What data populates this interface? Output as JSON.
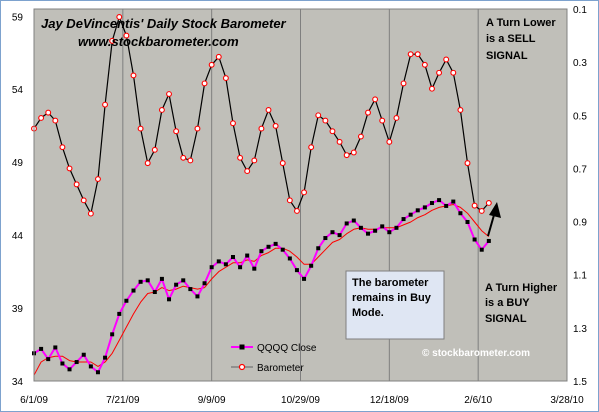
{
  "chart_data": {
    "type": "line",
    "title": "Jay DeVincentis' Daily Stock Barometer",
    "subtitle": "www.stockbarometer.com",
    "x_ticks": [
      "6/1/09",
      "7/21/09",
      "9/9/09",
      "10/29/09",
      "12/18/09",
      "2/6/10",
      "3/28/10"
    ],
    "y_left": {
      "ticks": [
        "59",
        "54",
        "49",
        "44",
        "39",
        "34"
      ],
      "ylim": [
        34,
        59.5
      ]
    },
    "y_right": {
      "ticks": [
        "0.1",
        "0.3",
        "0.5",
        "0.7",
        "0.9",
        "1.1",
        "1.3",
        "1.5"
      ],
      "ylim": [
        0.1,
        1.5
      ],
      "inverted": true
    },
    "grid": "vertical",
    "legend_position": "bottom-center",
    "series": [
      {
        "name": "QQQQ Close",
        "axis": "left",
        "color": "#ff00ff",
        "marker_color": "#000000",
        "x": [
          "6/1/09",
          "6/5/09",
          "6/9/09",
          "6/13/09",
          "6/17/09",
          "6/21/09",
          "6/25/09",
          "6/29/09",
          "7/3/09",
          "7/7/09",
          "7/11/09",
          "7/15/09",
          "7/19/09",
          "7/23/09",
          "7/27/09",
          "7/31/09",
          "8/4/09",
          "8/8/09",
          "8/12/09",
          "8/16/09",
          "8/20/09",
          "8/24/09",
          "8/28/09",
          "9/1/09",
          "9/5/09",
          "9/9/09",
          "9/13/09",
          "9/17/09",
          "9/21/09",
          "9/25/09",
          "9/29/09",
          "10/3/09",
          "10/7/09",
          "10/11/09",
          "10/15/09",
          "10/19/09",
          "10/23/09",
          "10/27/09",
          "10/31/09",
          "11/4/09",
          "11/8/09",
          "11/12/09",
          "11/16/09",
          "11/20/09",
          "11/24/09",
          "11/28/09",
          "12/2/09",
          "12/6/09",
          "12/10/09",
          "12/14/09",
          "12/18/09",
          "12/22/09",
          "12/26/09",
          "12/30/09",
          "1/3/10",
          "1/7/10",
          "1/11/10",
          "1/15/10",
          "1/19/10",
          "1/23/10",
          "1/27/10",
          "1/31/10",
          "2/4/10",
          "2/8/10",
          "2/12/10"
        ],
        "values": [
          35.9,
          36.2,
          35.5,
          36.3,
          35.2,
          34.8,
          35.3,
          35.8,
          35.0,
          34.6,
          35.6,
          37.2,
          38.6,
          39.5,
          40.2,
          40.8,
          40.9,
          40.1,
          41.0,
          39.6,
          40.6,
          40.9,
          40.3,
          39.8,
          40.7,
          41.8,
          42.2,
          42.0,
          42.5,
          41.8,
          42.6,
          41.7,
          42.9,
          43.2,
          43.4,
          43.0,
          42.4,
          41.6,
          41.0,
          41.9,
          43.1,
          43.8,
          44.2,
          44.0,
          44.8,
          45.0,
          44.5,
          44.1,
          44.3,
          44.6,
          44.2,
          44.5,
          45.1,
          45.4,
          45.7,
          45.9,
          46.2,
          46.4,
          46.0,
          46.3,
          45.5,
          44.9,
          43.7,
          43.0,
          43.6
        ]
      },
      {
        "name": "",
        "axis": "left",
        "color": "#ff0000",
        "x": [
          "6/1/09",
          "6/5/09",
          "6/9/09",
          "6/13/09",
          "6/17/09",
          "6/21/09",
          "6/25/09",
          "6/29/09",
          "7/3/09",
          "7/7/09",
          "7/11/09",
          "7/15/09",
          "7/19/09",
          "7/23/09",
          "7/27/09",
          "7/31/09",
          "8/4/09",
          "8/8/09",
          "8/12/09",
          "8/16/09",
          "8/20/09",
          "8/24/09",
          "8/28/09",
          "9/1/09",
          "9/5/09",
          "9/9/09",
          "9/13/09",
          "9/17/09",
          "9/21/09",
          "9/25/09",
          "9/29/09",
          "10/3/09",
          "10/7/09",
          "10/11/09",
          "10/15/09",
          "10/19/09",
          "10/23/09",
          "10/27/09",
          "10/31/09",
          "11/4/09",
          "11/8/09",
          "11/12/09",
          "11/16/09",
          "11/20/09",
          "11/24/09",
          "11/28/09",
          "12/2/09",
          "12/6/09",
          "12/10/09",
          "12/14/09",
          "12/18/09",
          "12/22/09",
          "12/26/09",
          "12/30/09",
          "1/3/10",
          "1/7/10",
          "1/11/10",
          "1/15/10",
          "1/19/10",
          "1/23/10",
          "1/27/10",
          "1/31/10",
          "2/4/10",
          "2/8/10",
          "2/12/10"
        ],
        "values": [
          34.4,
          35.3,
          35.6,
          35.7,
          35.7,
          35.4,
          35.3,
          35.3,
          35.3,
          35.0,
          35.3,
          35.9,
          36.8,
          37.7,
          38.6,
          39.4,
          40.0,
          40.1,
          40.4,
          40.2,
          40.3,
          40.5,
          40.4,
          40.3,
          40.4,
          41.0,
          41.5,
          41.8,
          42.1,
          42.1,
          42.3,
          42.2,
          42.6,
          42.8,
          43.1,
          43.1,
          42.9,
          42.5,
          42.0,
          42.0,
          42.5,
          43.0,
          43.5,
          43.7,
          44.1,
          44.4,
          44.5,
          44.4,
          44.4,
          44.5,
          44.5,
          44.5,
          44.7,
          44.9,
          45.2,
          45.4,
          45.7,
          45.9,
          46.0,
          46.1,
          45.9,
          45.5,
          44.9,
          44.3,
          43.9
        ]
      },
      {
        "name": "Barometer",
        "axis": "right",
        "color": "#000000",
        "marker_color": "#ff0000",
        "x": [
          "6/1/09",
          "6/5/09",
          "6/9/09",
          "6/13/09",
          "6/17/09",
          "6/21/09",
          "6/25/09",
          "6/29/09",
          "7/3/09",
          "7/7/09",
          "7/11/09",
          "7/15/09",
          "7/19/09",
          "7/23/09",
          "7/27/09",
          "7/31/09",
          "8/4/09",
          "8/8/09",
          "8/12/09",
          "8/16/09",
          "8/20/09",
          "8/24/09",
          "8/28/09",
          "9/1/09",
          "9/5/09",
          "9/9/09",
          "9/13/09",
          "9/17/09",
          "9/21/09",
          "9/25/09",
          "9/29/09",
          "10/3/09",
          "10/7/09",
          "10/11/09",
          "10/15/09",
          "10/19/09",
          "10/23/09",
          "10/27/09",
          "10/31/09",
          "11/4/09",
          "11/8/09",
          "11/12/09",
          "11/16/09",
          "11/20/09",
          "11/24/09",
          "11/28/09",
          "12/2/09",
          "12/6/09",
          "12/10/09",
          "12/14/09",
          "12/18/09",
          "12/22/09",
          "12/26/09",
          "12/30/09",
          "1/3/10",
          "1/7/10",
          "1/11/10",
          "1/15/10",
          "1/19/10",
          "1/23/10",
          "1/27/10",
          "1/31/10",
          "2/4/10",
          "2/8/10",
          "2/12/10"
        ],
        "values": [
          0.55,
          0.51,
          0.49,
          0.52,
          0.62,
          0.7,
          0.76,
          0.82,
          0.87,
          0.74,
          0.46,
          0.22,
          0.13,
          0.2,
          0.35,
          0.55,
          0.68,
          0.63,
          0.48,
          0.42,
          0.56,
          0.66,
          0.67,
          0.55,
          0.38,
          0.31,
          0.28,
          0.36,
          0.53,
          0.66,
          0.71,
          0.67,
          0.55,
          0.48,
          0.54,
          0.68,
          0.82,
          0.86,
          0.79,
          0.62,
          0.5,
          0.52,
          0.56,
          0.6,
          0.65,
          0.64,
          0.58,
          0.49,
          0.44,
          0.52,
          0.6,
          0.51,
          0.38,
          0.27,
          0.27,
          0.31,
          0.4,
          0.34,
          0.29,
          0.34,
          0.48,
          0.68,
          0.84,
          0.86,
          0.83
        ]
      }
    ],
    "annotations": {
      "sell": "A Turn Lower is a SELL SIGNAL",
      "buy": "A Turn Higher is a BUY SIGNAL",
      "note": "The barometer remains in Buy Mode.",
      "watermark": "© stockbarometer.com"
    }
  },
  "text": {
    "title": "Jay DeVincentis' Daily Stock Barometer",
    "subtitle": "www.stockbarometer.com",
    "sell_1": "A Turn Lower",
    "sell_2": "is a SELL",
    "sell_3": "SIGNAL",
    "buy_1": "A Turn Higher",
    "buy_2": "is a BUY",
    "buy_3": "SIGNAL",
    "note_1": "The barometer",
    "note_2": "remains in Buy",
    "note_3": "Mode.",
    "legend_qqqq": "QQQQ Close",
    "legend_barometer": "Barometer",
    "watermark": "© stockbarometer.com"
  },
  "colors": {
    "plot_bg": "#c0bfb9",
    "grid": "#7f7f7f",
    "qqqq_line": "#ff00ff",
    "avg_line": "#ff0000",
    "barometer_line": "#000000",
    "barometer_marker": "#ff0000",
    "note_box": "#dfe6f3",
    "frame": "#7da2ce"
  }
}
